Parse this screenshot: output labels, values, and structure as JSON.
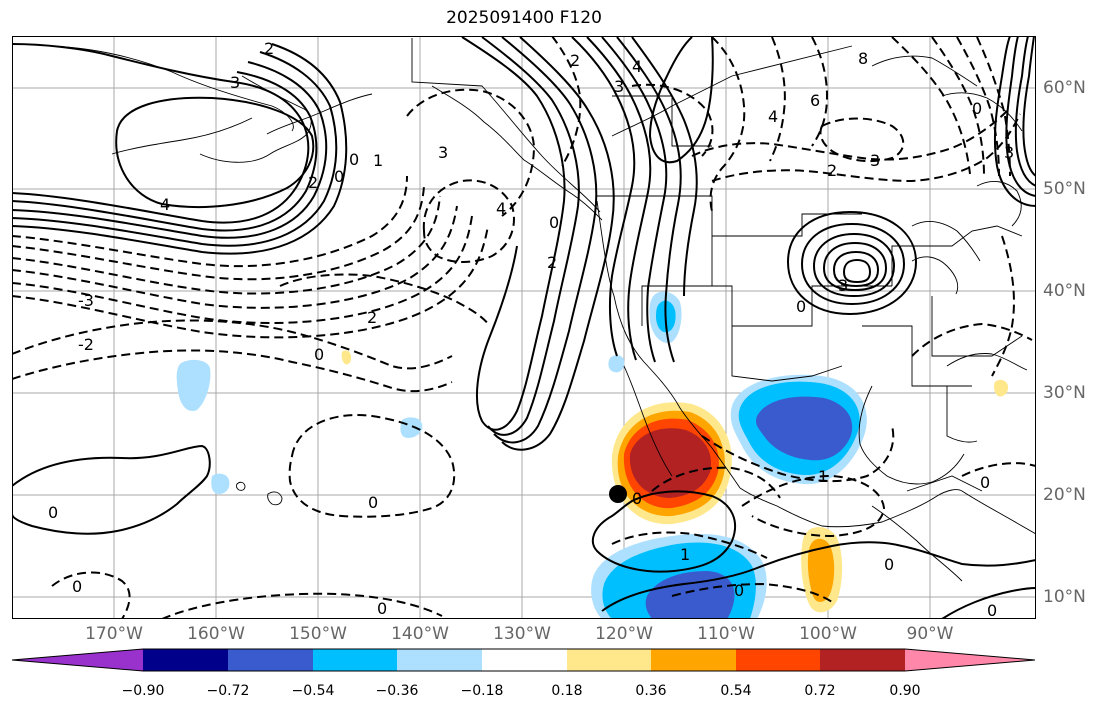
{
  "title": "2025091400 F120",
  "lon_labels": [
    "170°W",
    "160°W",
    "150°W",
    "140°W",
    "130°W",
    "120°W",
    "110°W",
    "100°W",
    "90°W"
  ],
  "lat_labels": [
    "60°N",
    "50°N",
    "40°N",
    "30°N",
    "20°N",
    "10°N"
  ],
  "colorbar": {
    "ticks": [
      "−0.90",
      "−0.72",
      "−0.54",
      "−0.36",
      "−0.18",
      "0.18",
      "0.36",
      "0.54",
      "0.72",
      "0.90"
    ],
    "colors": [
      "#9932CC",
      "#00008B",
      "#3A5BCE",
      "#00BFFF",
      "#ADE0FF",
      "#FFFFFF",
      "#FFE88C",
      "#FFA500",
      "#FF4500",
      "#B22222",
      "#FF88AA"
    ]
  },
  "contour_labels": {
    "neg2_nw": "2",
    "neg3_nw": "3",
    "pos4_nw": "4",
    "pos2_nw": "2",
    "pos1_nw": "1",
    "zero_a": "0",
    "zero_b": "0",
    "neg3_gulf": "3",
    "neg4_gulf": "4",
    "neg2_mid": "2",
    "neg3_west": "-3",
    "neg2_west": "-2",
    "zero_mid": "0",
    "zero_sub": "0",
    "zero_hi": "0",
    "zero_bot": "0",
    "zero_sw": "0",
    "pos2_coast": "2",
    "zero_coast": "0",
    "pos2_ak": "2",
    "neg3_ak": "3",
    "pos4_ak": "4",
    "neg4_can": "4",
    "neg6_can": "6",
    "neg8_can": "8",
    "neg3_can": "3",
    "neg2_can": "2",
    "pos3_low": "3",
    "zero_low": "0",
    "neg1_mex": "1",
    "zero_mex": "0",
    "pos1_bt": "1",
    "zero_tc": "0",
    "zero_carib": "0",
    "zero_se": "0",
    "zero_ne": "0",
    "pos3_ne": "3",
    "zero_bt": "0"
  },
  "storm_marker": "storm-center"
}
